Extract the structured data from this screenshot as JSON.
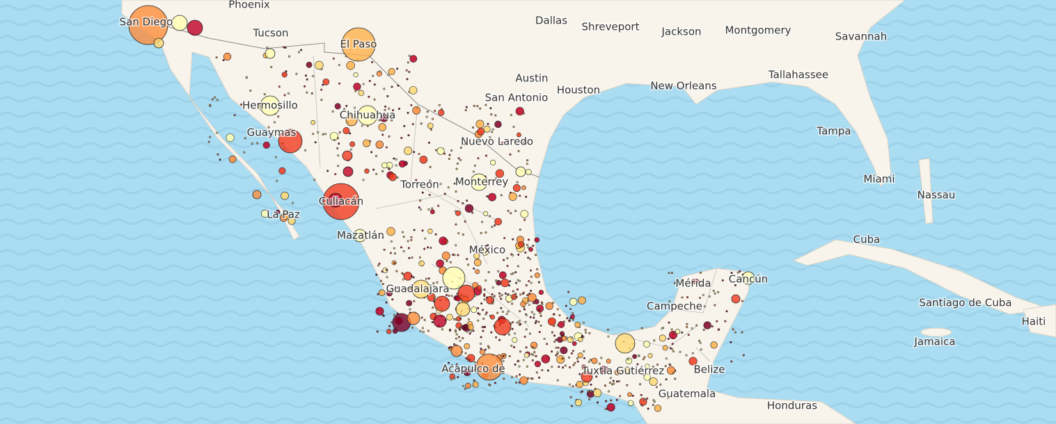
{
  "labels": [
    "Phoenix",
    "Tucson",
    "Dallas",
    "Shreveport",
    "Jackson",
    "Montgomery",
    "Savannah",
    "Austin",
    "San Antonio",
    "Houston",
    "New Orleans",
    "Tallahassee",
    "Tampa",
    "Miami",
    "Nassau",
    "Cuba",
    "Santiago de Cuba",
    "Haiti",
    "Jamaica",
    "Belize",
    "Guatemala",
    "Honduras",
    "Nuevo Laredo",
    "Monterrey",
    "Torreón",
    "Chihuahua",
    "Hermosillo",
    "Guaymas",
    "La Paz",
    "Culiacán",
    "Mazatlán",
    "México",
    "Guadalajara",
    "Acapulco de",
    "Tuxtla Gutiérrez",
    "Campeche",
    "Mérida",
    "Cancún",
    "San Diego",
    "El Paso"
  ]
}
